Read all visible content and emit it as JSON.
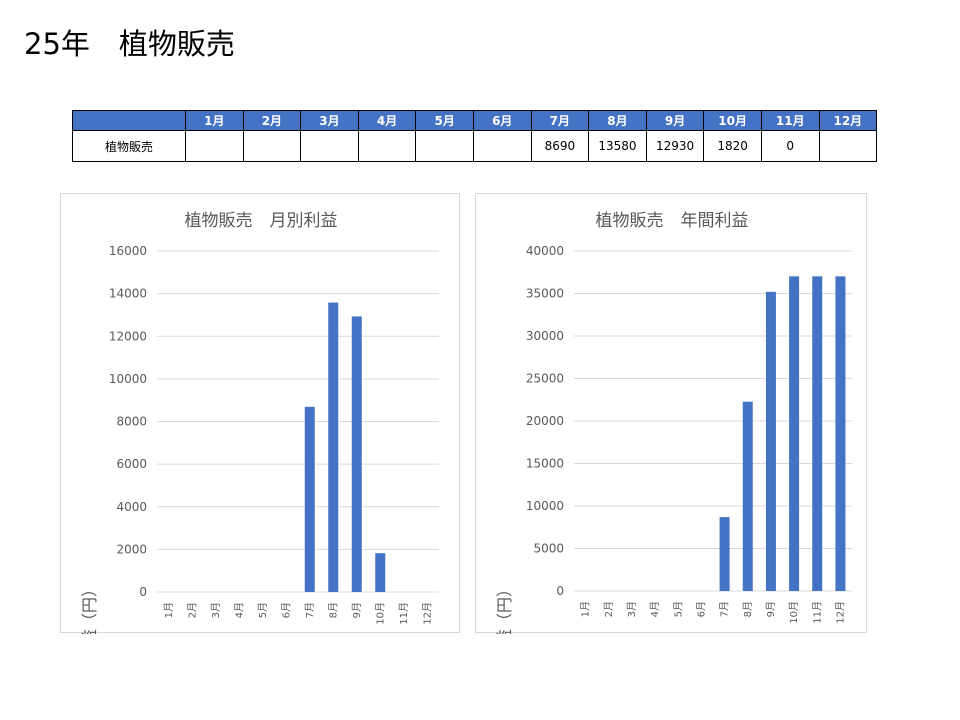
{
  "page": {
    "title": "25年　植物販売"
  },
  "table": {
    "row_label": "植物販売",
    "months": [
      "1月",
      "2月",
      "3月",
      "4月",
      "5月",
      "6月",
      "7月",
      "8月",
      "9月",
      "10月",
      "11月",
      "12月"
    ],
    "values": [
      "",
      "",
      "",
      "",
      "",
      "",
      "8690",
      "13580",
      "12930",
      "1820",
      "0",
      ""
    ]
  },
  "chart_data": [
    {
      "type": "bar",
      "title": "植物販売　月別利益",
      "ylabel": "利益（円）",
      "xlabel": "",
      "categories": [
        "1月",
        "2月",
        "3月",
        "4月",
        "5月",
        "6月",
        "7月",
        "8月",
        "9月",
        "10月",
        "11月",
        "12月"
      ],
      "values": [
        0,
        0,
        0,
        0,
        0,
        0,
        8690,
        13580,
        12930,
        1820,
        0,
        0
      ],
      "ylim": [
        0,
        16000
      ],
      "yticks": [
        "0",
        "2000",
        "4000",
        "6000",
        "8000",
        "10000",
        "12000",
        "14000",
        "16000"
      ],
      "grid": true,
      "legend": "none",
      "bar_color": "#4472c4"
    },
    {
      "type": "bar",
      "title": "植物販売　年間利益",
      "ylabel": "利益（円）",
      "xlabel": "",
      "categories": [
        "1月",
        "2月",
        "3月",
        "4月",
        "5月",
        "6月",
        "7月",
        "8月",
        "9月",
        "10月",
        "11月",
        "12月"
      ],
      "values": [
        0,
        0,
        0,
        0,
        0,
        0,
        8690,
        22270,
        35200,
        37020,
        37020,
        37020
      ],
      "ylim": [
        0,
        40000
      ],
      "yticks": [
        "0",
        "5000",
        "10000",
        "15000",
        "20000",
        "25000",
        "30000",
        "35000",
        "40000"
      ],
      "grid": true,
      "legend": "none",
      "bar_color": "#4472c4"
    }
  ]
}
